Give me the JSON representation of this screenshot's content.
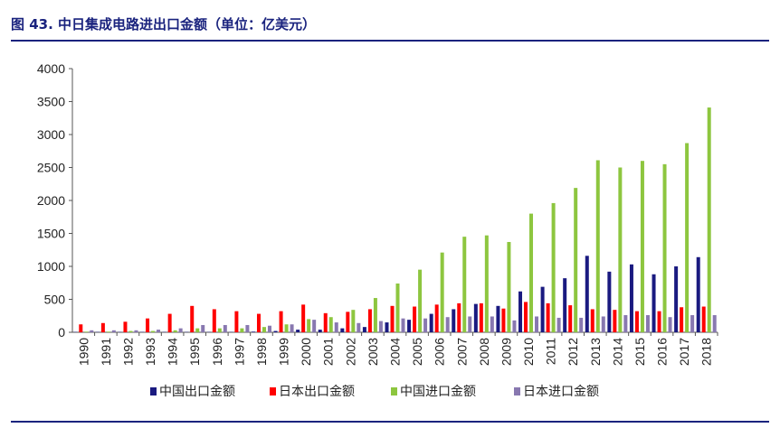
{
  "title": "图 43. 中日集成电路进出口金额（单位：亿美元）",
  "colors": {
    "accent": "#1a237e"
  },
  "chart_data": {
    "type": "bar",
    "categories": [
      "1990",
      "1991",
      "1992",
      "1993",
      "1994",
      "1995",
      "1996",
      "1997",
      "1998",
      "1999",
      "2000",
      "2001",
      "2002",
      "2003",
      "2004",
      "2005",
      "2006",
      "2007",
      "2008",
      "2009",
      "2010",
      "2011",
      "2012",
      "2013",
      "2014",
      "2015",
      "2016",
      "2017",
      "2018"
    ],
    "series": [
      {
        "name": "中国出口金额",
        "color": "#1a1a80",
        "values": [
          5,
          5,
          5,
          5,
          5,
          5,
          5,
          5,
          10,
          20,
          40,
          40,
          60,
          80,
          150,
          190,
          280,
          350,
          430,
          400,
          620,
          690,
          820,
          1160,
          920,
          1030,
          880,
          1000,
          1140
        ]
      },
      {
        "name": "日本出口金额",
        "color": "#ff0000",
        "values": [
          120,
          140,
          160,
          210,
          280,
          400,
          350,
          320,
          280,
          320,
          420,
          290,
          310,
          350,
          400,
          390,
          420,
          440,
          440,
          360,
          460,
          440,
          410,
          350,
          340,
          320,
          320,
          380,
          390
        ]
      },
      {
        "name": "中国进口金额",
        "color": "#8dc63f",
        "values": [
          10,
          10,
          20,
          20,
          30,
          60,
          60,
          60,
          80,
          120,
          200,
          230,
          340,
          520,
          740,
          950,
          1210,
          1450,
          1470,
          1370,
          1800,
          1960,
          2190,
          2610,
          2500,
          2600,
          2550,
          2870,
          3410
        ]
      },
      {
        "name": "日本进口金额",
        "color": "#8878b0",
        "values": [
          30,
          30,
          30,
          40,
          60,
          110,
          110,
          110,
          100,
          120,
          190,
          150,
          140,
          170,
          210,
          210,
          230,
          240,
          240,
          180,
          240,
          220,
          220,
          240,
          260,
          260,
          230,
          260,
          260
        ]
      }
    ],
    "ylim": [
      0,
      4000
    ],
    "yticks": [
      "0",
      "500",
      "1000",
      "1500",
      "2000",
      "2500",
      "3000",
      "3500",
      "4000"
    ],
    "legend_position": "bottom",
    "grid": false
  }
}
